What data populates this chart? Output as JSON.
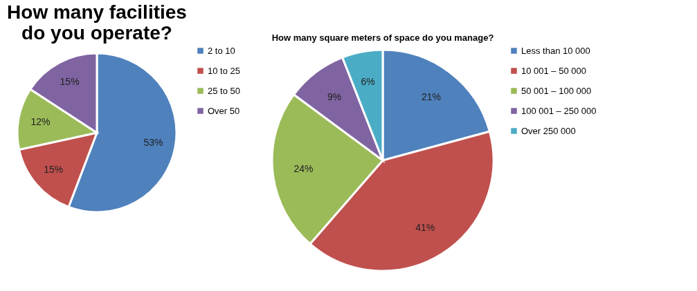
{
  "chart_data": [
    {
      "type": "pie",
      "title": [
        "How many facilities",
        "do you operate?"
      ],
      "categories": [
        "2 to 10",
        "10 to 25",
        "25 to 50",
        "Over 50"
      ],
      "values": [
        53,
        15,
        12,
        15
      ],
      "value_labels": [
        "53%",
        "15%",
        "12%",
        "15%"
      ],
      "colors": [
        "#4f81bd",
        "#c0504d",
        "#9bbb59",
        "#8064a2"
      ],
      "legend": "right"
    },
    {
      "type": "pie",
      "title": "How many square meters of space do you manage?",
      "categories": [
        "Less than 10 000",
        "10 001 – 50 000",
        "50 001 – 100 000",
        "100 001 – 250 000",
        "Over 250 000"
      ],
      "values": [
        21,
        41,
        24,
        9,
        6
      ],
      "value_labels": [
        "21%",
        "41%",
        "24%",
        "9%",
        "6%"
      ],
      "colors": [
        "#4f81bd",
        "#c0504d",
        "#9bbb59",
        "#8064a2",
        "#4bacc6"
      ],
      "legend": "right"
    }
  ]
}
